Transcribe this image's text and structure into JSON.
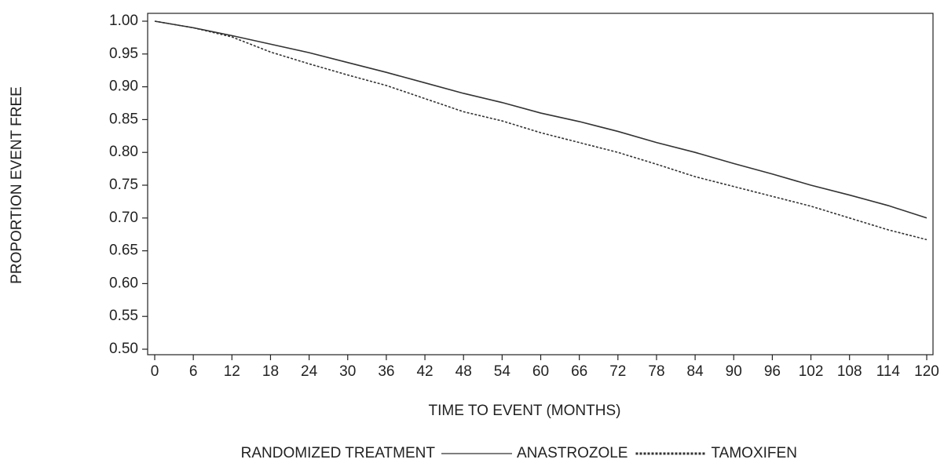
{
  "chart_data": {
    "type": "line",
    "x_label": "TIME TO EVENT (MONTHS)",
    "y_label": "PROPORTION EVENT FREE",
    "legend_title": "RANDOMIZED TREATMENT",
    "x": [
      0,
      6,
      12,
      18,
      24,
      30,
      36,
      42,
      48,
      54,
      60,
      66,
      72,
      78,
      84,
      90,
      96,
      102,
      108,
      114,
      120
    ],
    "series": [
      {
        "name": "ANASTROZOLE",
        "color": "#333333",
        "dash": "none",
        "values": [
          1.0,
          0.99,
          0.978,
          0.965,
          0.952,
          0.937,
          0.922,
          0.906,
          0.89,
          0.876,
          0.86,
          0.847,
          0.832,
          0.815,
          0.8,
          0.783,
          0.767,
          0.75,
          0.735,
          0.719,
          0.7
        ]
      },
      {
        "name": "TAMOXIFEN",
        "color": "#333333",
        "dash": "3,2",
        "values": [
          1.0,
          0.99,
          0.976,
          0.953,
          0.935,
          0.918,
          0.902,
          0.882,
          0.862,
          0.848,
          0.83,
          0.815,
          0.8,
          0.782,
          0.763,
          0.748,
          0.733,
          0.718,
          0.7,
          0.682,
          0.667
        ]
      }
    ],
    "xlim": [
      0,
      120
    ],
    "xticks": [
      0,
      6,
      12,
      18,
      24,
      30,
      36,
      42,
      48,
      54,
      60,
      66,
      72,
      78,
      84,
      90,
      96,
      102,
      108,
      114,
      120
    ],
    "ylim": [
      0.5,
      1.0
    ],
    "yticks": [
      {
        "value": 0.5,
        "label": "0.50"
      },
      {
        "value": 0.55,
        "label": "0.55"
      },
      {
        "value": 0.6,
        "label": "0.60"
      },
      {
        "value": 0.65,
        "label": "0.65"
      },
      {
        "value": 0.7,
        "label": "0.70"
      },
      {
        "value": 0.75,
        "label": "0.75"
      },
      {
        "value": 0.8,
        "label": "0.80"
      },
      {
        "value": 0.85,
        "label": "0.85"
      },
      {
        "value": 0.9,
        "label": "0.90"
      },
      {
        "value": 0.95,
        "label": "0.95"
      },
      {
        "value": 1.0,
        "label": "1.00"
      }
    ],
    "grid": false
  }
}
